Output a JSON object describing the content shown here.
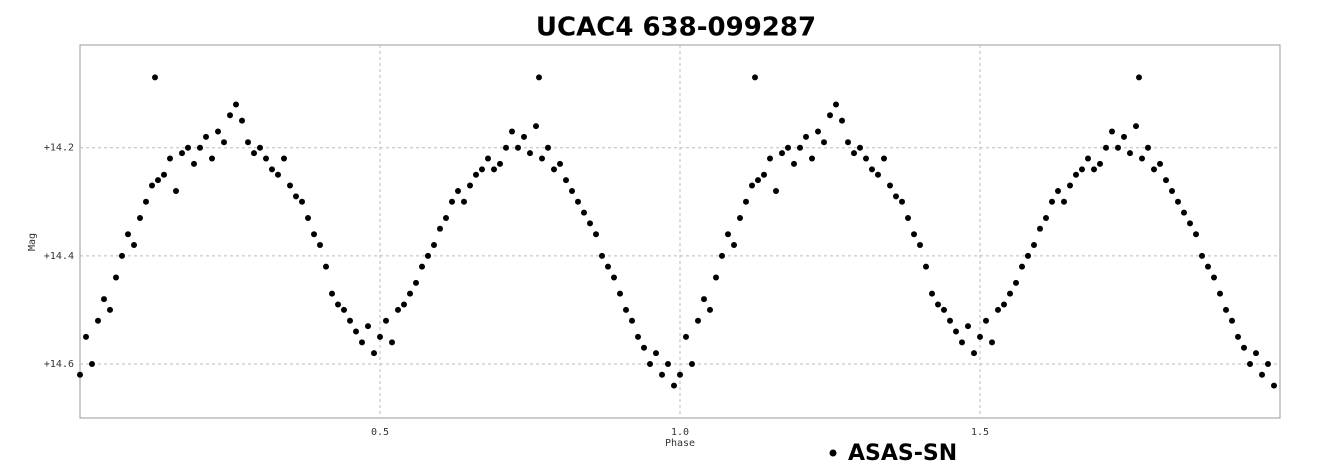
{
  "chart_data": {
    "type": "scatter",
    "title": "UCAC4 638-099287",
    "xlabel": "Phase",
    "ylabel": "Mag",
    "xlim": [
      0,
      2
    ],
    "ylim": [
      14.7,
      14.01
    ],
    "xticks": [
      0.5,
      {
        "value": 1.0,
        "label": "1.0"
      },
      1.5
    ],
    "yticks": [
      {
        "value": 14.2,
        "label": "+14.2"
      },
      {
        "value": 14.4,
        "label": "+14.4"
      },
      {
        "value": 14.6,
        "label": "+14.6"
      }
    ],
    "grid": true,
    "legend": "bottom",
    "series": [
      {
        "name": "ASAS-SN",
        "color": "#000000",
        "x": [
          0.0,
          0.01,
          0.02,
          0.03,
          0.04,
          0.05,
          0.06,
          0.07,
          0.08,
          0.09,
          0.1,
          0.11,
          0.12,
          0.125,
          0.13,
          0.14,
          0.15,
          0.16,
          0.17,
          0.18,
          0.19,
          0.2,
          0.21,
          0.22,
          0.23,
          0.24,
          0.25,
          0.26,
          0.27,
          0.28,
          0.29,
          0.3,
          0.31,
          0.32,
          0.33,
          0.34,
          0.35,
          0.36,
          0.37,
          0.38,
          0.39,
          0.4,
          0.41,
          0.42,
          0.43,
          0.44,
          0.45,
          0.46,
          0.47,
          0.48,
          0.49,
          0.5,
          0.51,
          0.52,
          0.53,
          0.54,
          0.55,
          0.56,
          0.57,
          0.58,
          0.59,
          0.6,
          0.61,
          0.62,
          0.63,
          0.64,
          0.65,
          0.66,
          0.67,
          0.68,
          0.69,
          0.7,
          0.71,
          0.72,
          0.73,
          0.74,
          0.75,
          0.76,
          0.765,
          0.77,
          0.78,
          0.79,
          0.8,
          0.81,
          0.82,
          0.83,
          0.84,
          0.85,
          0.86,
          0.87,
          0.88,
          0.89,
          0.9,
          0.91,
          0.92,
          0.93,
          0.94,
          0.95,
          0.96,
          0.97,
          0.98,
          0.99,
          1.0,
          1.01,
          1.02,
          1.03,
          1.04,
          1.05,
          1.06,
          1.07,
          1.08,
          1.09,
          1.1,
          1.11,
          1.12,
          1.125,
          1.13,
          1.14,
          1.15,
          1.16,
          1.17,
          1.18,
          1.19,
          1.2,
          1.21,
          1.22,
          1.23,
          1.24,
          1.25,
          1.26,
          1.27,
          1.28,
          1.29,
          1.3,
          1.31,
          1.32,
          1.33,
          1.34,
          1.35,
          1.36,
          1.37,
          1.38,
          1.39,
          1.4,
          1.41,
          1.42,
          1.43,
          1.44,
          1.45,
          1.46,
          1.47,
          1.48,
          1.49,
          1.5,
          1.51,
          1.52,
          1.53,
          1.54,
          1.55,
          1.56,
          1.57,
          1.58,
          1.59,
          1.6,
          1.61,
          1.62,
          1.63,
          1.64,
          1.65,
          1.66,
          1.67,
          1.68,
          1.69,
          1.7,
          1.71,
          1.72,
          1.73,
          1.74,
          1.75,
          1.76,
          1.765,
          1.77,
          1.78,
          1.79,
          1.8,
          1.81,
          1.82,
          1.83,
          1.84,
          1.85,
          1.86,
          1.87,
          1.88,
          1.89,
          1.9,
          1.91,
          1.92,
          1.93,
          1.94,
          1.95,
          1.96,
          1.97,
          1.98,
          1.99
        ],
        "values": [
          14.62,
          14.55,
          14.6,
          14.52,
          14.48,
          14.5,
          14.44,
          14.4,
          14.36,
          14.38,
          14.33,
          14.3,
          14.27,
          14.07,
          14.26,
          14.25,
          14.22,
          14.28,
          14.21,
          14.2,
          14.23,
          14.2,
          14.18,
          14.22,
          14.17,
          14.19,
          14.14,
          14.12,
          14.15,
          14.19,
          14.21,
          14.2,
          14.22,
          14.24,
          14.25,
          14.22,
          14.27,
          14.29,
          14.3,
          14.33,
          14.36,
          14.38,
          14.42,
          14.47,
          14.49,
          14.5,
          14.52,
          14.54,
          14.56,
          14.53,
          14.58,
          14.55,
          14.52,
          14.56,
          14.5,
          14.49,
          14.47,
          14.45,
          14.42,
          14.4,
          14.38,
          14.35,
          14.33,
          14.3,
          14.28,
          14.3,
          14.27,
          14.25,
          14.24,
          14.22,
          14.24,
          14.23,
          14.2,
          14.17,
          14.2,
          14.18,
          14.21,
          14.16,
          14.07,
          14.22,
          14.2,
          14.24,
          14.23,
          14.26,
          14.28,
          14.3,
          14.32,
          14.34,
          14.36,
          14.4,
          14.42,
          14.44,
          14.47,
          14.5,
          14.52,
          14.55,
          14.57,
          14.6,
          14.58,
          14.62,
          14.6,
          14.64,
          14.62,
          14.55,
          14.6,
          14.52,
          14.48,
          14.5,
          14.44,
          14.4,
          14.36,
          14.38,
          14.33,
          14.3,
          14.27,
          14.07,
          14.26,
          14.25,
          14.22,
          14.28,
          14.21,
          14.2,
          14.23,
          14.2,
          14.18,
          14.22,
          14.17,
          14.19,
          14.14,
          14.12,
          14.15,
          14.19,
          14.21,
          14.2,
          14.22,
          14.24,
          14.25,
          14.22,
          14.27,
          14.29,
          14.3,
          14.33,
          14.36,
          14.38,
          14.42,
          14.47,
          14.49,
          14.5,
          14.52,
          14.54,
          14.56,
          14.53,
          14.58,
          14.55,
          14.52,
          14.56,
          14.5,
          14.49,
          14.47,
          14.45,
          14.42,
          14.4,
          14.38,
          14.35,
          14.33,
          14.3,
          14.28,
          14.3,
          14.27,
          14.25,
          14.24,
          14.22,
          14.24,
          14.23,
          14.2,
          14.17,
          14.2,
          14.18,
          14.21,
          14.16,
          14.07,
          14.22,
          14.2,
          14.24,
          14.23,
          14.26,
          14.28,
          14.3,
          14.32,
          14.34,
          14.36,
          14.4,
          14.42,
          14.44,
          14.47,
          14.5,
          14.52,
          14.55,
          14.57,
          14.6,
          14.58,
          14.62,
          14.6,
          14.64
        ]
      }
    ]
  }
}
